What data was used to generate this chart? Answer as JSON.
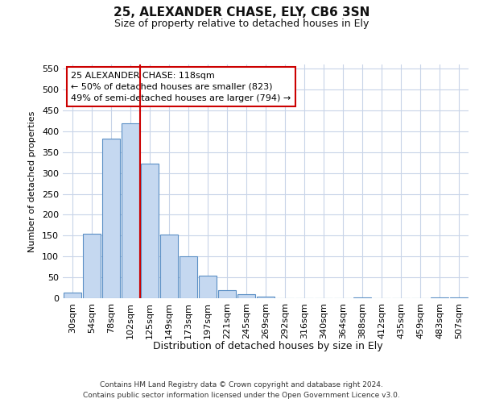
{
  "title_line1": "25, ALEXANDER CHASE, ELY, CB6 3SN",
  "title_line2": "Size of property relative to detached houses in Ely",
  "xlabel": "Distribution of detached houses by size in Ely",
  "ylabel": "Number of detached properties",
  "bar_labels": [
    "30sqm",
    "54sqm",
    "78sqm",
    "102sqm",
    "125sqm",
    "149sqm",
    "173sqm",
    "197sqm",
    "221sqm",
    "245sqm",
    "269sqm",
    "292sqm",
    "316sqm",
    "340sqm",
    "364sqm",
    "388sqm",
    "412sqm",
    "435sqm",
    "459sqm",
    "483sqm",
    "507sqm"
  ],
  "bar_values": [
    14,
    155,
    382,
    420,
    322,
    152,
    100,
    55,
    20,
    10,
    3,
    0,
    0,
    0,
    0,
    2,
    0,
    0,
    0,
    2,
    2
  ],
  "bar_color": "#c5d8f0",
  "bar_edge_color": "#5a8fc5",
  "vline_index": 4,
  "vline_color": "#cc0000",
  "annotation_line1": "25 ALEXANDER CHASE: 118sqm",
  "annotation_line2": "← 50% of detached houses are smaller (823)",
  "annotation_line3": "49% of semi-detached houses are larger (794) →",
  "annotation_box_facecolor": "#ffffff",
  "annotation_box_edgecolor": "#cc0000",
  "ylim": [
    0,
    560
  ],
  "yticks": [
    0,
    50,
    100,
    150,
    200,
    250,
    300,
    350,
    400,
    450,
    500,
    550
  ],
  "grid_color": "#c8d4e8",
  "fig_facecolor": "#ffffff",
  "axes_facecolor": "#ffffff",
  "footnote_line1": "Contains HM Land Registry data © Crown copyright and database right 2024.",
  "footnote_line2": "Contains public sector information licensed under the Open Government Licence v3.0."
}
